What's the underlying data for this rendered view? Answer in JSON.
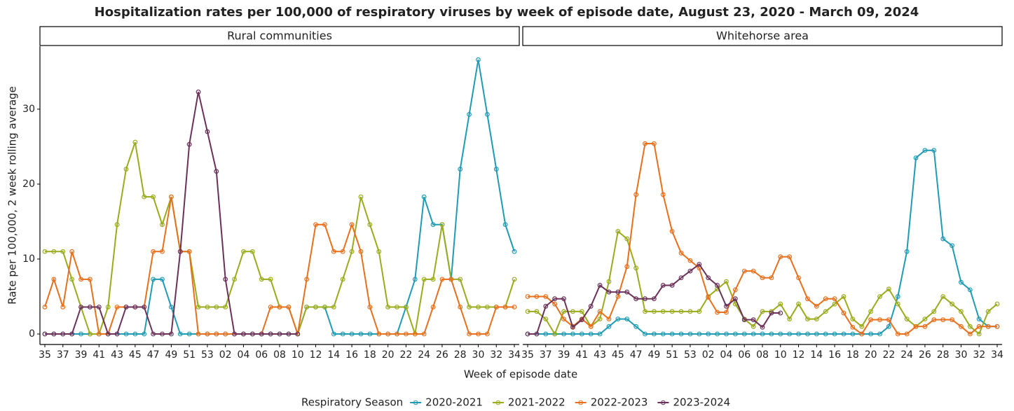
{
  "chart_data": {
    "type": "line",
    "title": "Hospitalization rates per 100,000 of respiratory viruses by week of episode date, August 23, 2020 - March 09, 2024",
    "x_label": "Week of episode date",
    "y_label": "Rate per 100,000, 2 week rolling average",
    "legend_title": "Respiratory Season",
    "categories": [
      "35",
      null,
      "37",
      null,
      "39",
      null,
      "41",
      null,
      "43",
      null,
      "45",
      null,
      "47",
      null,
      "49",
      null,
      "51",
      null,
      "53",
      null,
      "02",
      null,
      "04",
      null,
      "06",
      null,
      "08",
      null,
      "10",
      null,
      "12",
      null,
      "14",
      null,
      "16",
      null,
      "18",
      null,
      "20",
      null,
      "22",
      null,
      "24",
      null,
      "26",
      null,
      "28",
      null,
      "30",
      null,
      "32",
      null,
      "34"
    ],
    "ylim": [
      -1.4,
      38.4
    ],
    "yticks": [
      0,
      10,
      20,
      30
    ],
    "facets": [
      {
        "title": "Rural communities",
        "series": [
          {
            "name": "2020-2021",
            "color": "#1f9bb4",
            "values": [
              0,
              0,
              0,
              0,
              0,
              0,
              0,
              0,
              0,
              0,
              0,
              0,
              7.3,
              7.3,
              3.6,
              0,
              0,
              0,
              0,
              0,
              0,
              0,
              0,
              0,
              0,
              0,
              0,
              0,
              0,
              3.6,
              3.6,
              3.6,
              0,
              0,
              0,
              0,
              0,
              0,
              0,
              0,
              3.6,
              7.3,
              18.3,
              14.6,
              14.6,
              7.3,
              22,
              29.3,
              36.6,
              29.3,
              22,
              14.6,
              11
            ]
          },
          {
            "name": "2021-2022",
            "color": "#9aab1c",
            "values": [
              11,
              11,
              11,
              7.3,
              3.6,
              0,
              0,
              3.6,
              14.6,
              22,
              25.6,
              18.3,
              18.3,
              14.6,
              18.3,
              11,
              11,
              3.6,
              3.6,
              3.6,
              3.6,
              7.3,
              11,
              11,
              7.3,
              7.3,
              3.6,
              3.6,
              0,
              3.6,
              3.6,
              3.6,
              3.6,
              7.3,
              11,
              18.3,
              14.6,
              11,
              3.6,
              3.6,
              3.6,
              0,
              7.3,
              7.3,
              14.6,
              7.3,
              7.3,
              3.6,
              3.6,
              3.6,
              3.6,
              3.6,
              7.3
            ]
          },
          {
            "name": "2022-2023",
            "color": "#e86f1c",
            "values": [
              3.6,
              7.3,
              3.6,
              11,
              7.3,
              7.3,
              0,
              0,
              3.6,
              3.6,
              3.6,
              3.6,
              11,
              11,
              18.3,
              11,
              11,
              0,
              0,
              0,
              0,
              0,
              0,
              0,
              0,
              3.6,
              3.6,
              3.6,
              0,
              7.3,
              14.6,
              14.6,
              11,
              11,
              14.6,
              11,
              3.6,
              0,
              0,
              0,
              0,
              0,
              0,
              3.6,
              7.3,
              7.3,
              3.6,
              0,
              0,
              0,
              3.6,
              3.6,
              3.6
            ]
          },
          {
            "name": "2023-2024",
            "color": "#6b3159",
            "values": [
              0,
              0,
              0,
              0,
              3.6,
              3.6,
              3.6,
              0,
              0,
              3.6,
              3.6,
              3.6,
              0,
              0,
              0,
              11,
              25.3,
              32.3,
              27,
              21.7,
              7.3,
              0,
              0,
              0,
              0,
              0,
              0,
              0,
              0,
              null,
              null,
              null,
              null,
              null,
              null,
              null,
              null,
              null,
              null,
              null,
              null,
              null,
              null,
              null,
              null,
              null,
              null,
              null,
              null,
              null,
              null,
              null,
              null
            ]
          }
        ]
      },
      {
        "title": "Whitehorse area",
        "series": [
          {
            "name": "2020-2021",
            "color": "#1f9bb4",
            "values": [
              0,
              0,
              0,
              0,
              0,
              0,
              0,
              0,
              0,
              1,
              2,
              2,
              1,
              0,
              0,
              0,
              0,
              0,
              0,
              0,
              0,
              0,
              0,
              0,
              0,
              0,
              0,
              0,
              0,
              0,
              0,
              0,
              0,
              0,
              0,
              0,
              0,
              0,
              0,
              0,
              1,
              5,
              11,
              23.5,
              24.5,
              24.5,
              12.7,
              11.8,
              6.9,
              5.9,
              2,
              1,
              1
            ]
          },
          {
            "name": "2021-2022",
            "color": "#9aab1c",
            "values": [
              3,
              3,
              2,
              0,
              3,
              3,
              3,
              1,
              2,
              7,
              13.7,
              12.7,
              8.8,
              3,
              3,
              3,
              3,
              3,
              3,
              3,
              5,
              6,
              7,
              4,
              2,
              1,
              3,
              3,
              4,
              2,
              4,
              2,
              2,
              3,
              4,
              5,
              2,
              1,
              3,
              5,
              6,
              4,
              2,
              1,
              2,
              3,
              5,
              4,
              3,
              1,
              0,
              3,
              4
            ]
          },
          {
            "name": "2022-2023",
            "color": "#e86f1c",
            "values": [
              5,
              5,
              5,
              4,
              2,
              1,
              2,
              1,
              3,
              2,
              5,
              9,
              18.6,
              25.4,
              25.4,
              18.6,
              13.7,
              10.8,
              9.8,
              8.8,
              4.9,
              2.9,
              2.9,
              5.9,
              8.4,
              8.4,
              7.5,
              7.5,
              10.3,
              10.3,
              7.5,
              4.7,
              3.7,
              4.7,
              4.7,
              2.8,
              0.9,
              0,
              1.9,
              1.9,
              1.9,
              0,
              0,
              1,
              1,
              1.9,
              1.9,
              1.9,
              1,
              0,
              1,
              1,
              1
            ]
          },
          {
            "name": "2023-2024",
            "color": "#6b3159",
            "values": [
              0,
              0,
              3.7,
              4.7,
              4.7,
              0.9,
              1.9,
              3.7,
              6.5,
              5.6,
              5.6,
              5.6,
              4.7,
              4.7,
              4.7,
              6.5,
              6.5,
              7.5,
              8.4,
              9.3,
              7.5,
              6.5,
              3.7,
              4.7,
              1.9,
              1.9,
              0.9,
              2.8,
              2.8,
              null,
              null,
              null,
              null,
              null,
              null,
              null,
              null,
              null,
              null,
              null,
              null,
              null,
              null,
              null,
              null,
              null,
              null,
              null,
              null,
              null,
              null,
              null,
              null
            ]
          }
        ]
      }
    ]
  }
}
